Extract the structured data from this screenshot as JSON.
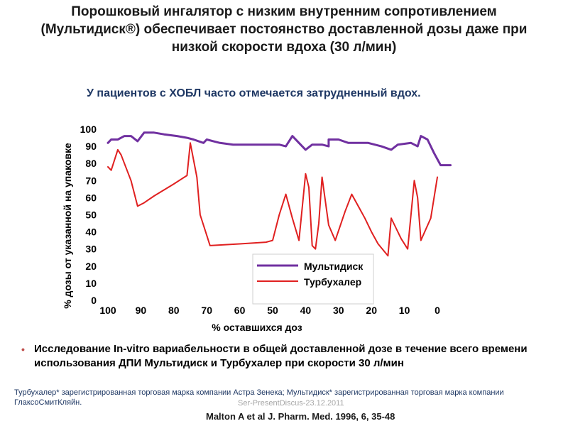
{
  "slide": {
    "title": "Порошковый ингалятор с низким внутренним сопротивлением (Мультидиск®) обеспечивает постоянство доставленной дозы даже при низкой скорости вдоха (30 л/мин)",
    "subtitle": "У пациентов с ХОБЛ часто отмечается затрудненный вдох.",
    "bullet": "Исследование In-vitro вариабельности в общей доставленной дозе в течение всего времени использования ДПИ Мультидиск и Турбухалер при скорости 30 л/мин",
    "footnote": "Турбухалер* зарегистрированная торговая марка компании Астра Зенека; Мультидиск* зарегистрированная торговая марка компании ГлаксоСмитКляйн.",
    "watermark": "Ser-PresentDiscus-23.12.2011",
    "reference": "Malton A et al  J. Pharm. Med. 1996, 6, 35-48"
  },
  "chart_data": {
    "type": "line",
    "xlabel": "% оставшихся доз",
    "ylabel": "% дозы от указанной на упаковке",
    "xlim": [
      100,
      0
    ],
    "ylim": [
      0,
      100
    ],
    "x_ticks": [
      "100",
      "90",
      "80",
      "70",
      "60",
      "50",
      "40",
      "30",
      "20",
      "10",
      "0"
    ],
    "y_ticks": [
      "0",
      "10",
      "20",
      "30",
      "40",
      "50",
      "60",
      "70",
      "80",
      "90",
      "100"
    ],
    "legend_position": "bottom-right",
    "series": [
      {
        "name": "Мультидиск",
        "color": "#7030a0",
        "points": [
          [
            100,
            92
          ],
          [
            99,
            94
          ],
          [
            97,
            94
          ],
          [
            95,
            96
          ],
          [
            93,
            96
          ],
          [
            91,
            93
          ],
          [
            89,
            98
          ],
          [
            86,
            98
          ],
          [
            83,
            97
          ],
          [
            79,
            96
          ],
          [
            76,
            95
          ],
          [
            74,
            94
          ],
          [
            71,
            92
          ],
          [
            70,
            94
          ],
          [
            68,
            93
          ],
          [
            66,
            92
          ],
          [
            62,
            91
          ],
          [
            55,
            91
          ],
          [
            48,
            91
          ],
          [
            46,
            90
          ],
          [
            44,
            96
          ],
          [
            42,
            92
          ],
          [
            40,
            88
          ],
          [
            38,
            91
          ],
          [
            35,
            91
          ],
          [
            33,
            90
          ],
          [
            33,
            94
          ],
          [
            30,
            94
          ],
          [
            27,
            92
          ],
          [
            24,
            92
          ],
          [
            21,
            92
          ],
          [
            17,
            90
          ],
          [
            14,
            88
          ],
          [
            12,
            91
          ],
          [
            8,
            92
          ],
          [
            6,
            90
          ],
          [
            5,
            96
          ],
          [
            3,
            94
          ],
          [
            1,
            86
          ],
          [
            -1,
            79
          ],
          [
            -4,
            79
          ]
        ]
      },
      {
        "name": "Турбухалер",
        "color": "#e02020",
        "points": [
          [
            100,
            78
          ],
          [
            99,
            76
          ],
          [
            97,
            88
          ],
          [
            96,
            85
          ],
          [
            95,
            80
          ],
          [
            93,
            70
          ],
          [
            91,
            55
          ],
          [
            89,
            57
          ],
          [
            86,
            61
          ],
          [
            80,
            68
          ],
          [
            76,
            73
          ],
          [
            75,
            92
          ],
          [
            73,
            72
          ],
          [
            72,
            50
          ],
          [
            70,
            38
          ],
          [
            69,
            32
          ],
          [
            60,
            33
          ],
          [
            52,
            34
          ],
          [
            50,
            35
          ],
          [
            48,
            50
          ],
          [
            46,
            62
          ],
          [
            44,
            48
          ],
          [
            42,
            35
          ],
          [
            40,
            74
          ],
          [
            39,
            66
          ],
          [
            38,
            32
          ],
          [
            37,
            30
          ],
          [
            36,
            45
          ],
          [
            35,
            72
          ],
          [
            33,
            44
          ],
          [
            31,
            35
          ],
          [
            28,
            52
          ],
          [
            26,
            62
          ],
          [
            22,
            48
          ],
          [
            20,
            40
          ],
          [
            18,
            33
          ],
          [
            15,
            26
          ],
          [
            14,
            48
          ],
          [
            13,
            44
          ],
          [
            11,
            36
          ],
          [
            9,
            30
          ],
          [
            7,
            70
          ],
          [
            6,
            60
          ],
          [
            5,
            35
          ],
          [
            2,
            48
          ],
          [
            0,
            72
          ]
        ]
      }
    ]
  }
}
